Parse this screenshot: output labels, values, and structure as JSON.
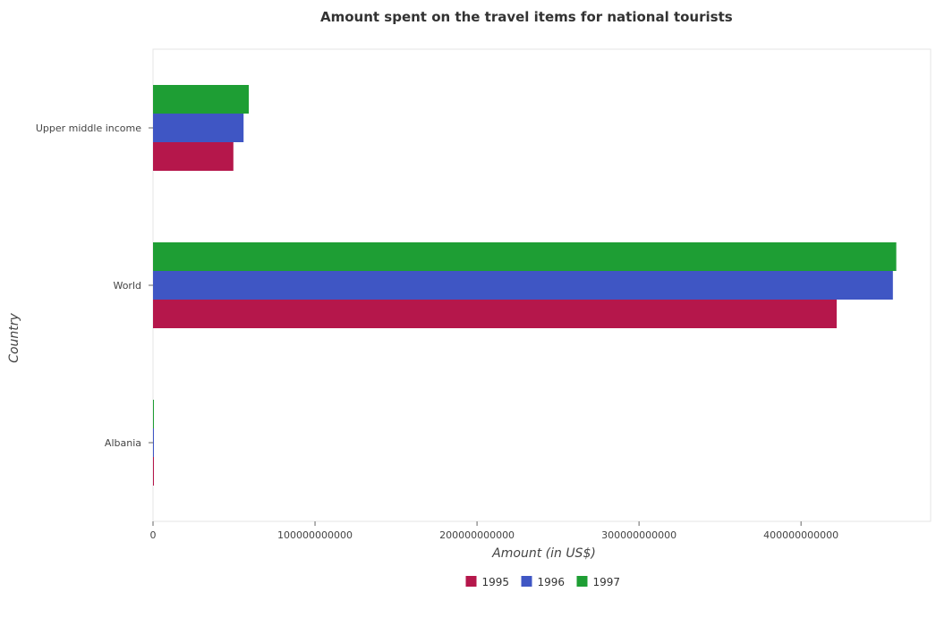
{
  "chart_data": {
    "type": "bar",
    "orientation": "horizontal",
    "title": "Amount spent on the travel items for national tourists",
    "xlabel": "Amount (in US$)",
    "ylabel": "Country",
    "categories": [
      "Upper middle income",
      "World",
      "Albania"
    ],
    "series": [
      {
        "name": "1995",
        "color": "#b5174b",
        "values": [
          49600000000,
          422000000000,
          70000000
        ]
      },
      {
        "name": "1996",
        "color": "#3f56c4",
        "values": [
          55900000000,
          456700000000,
          94000000
        ]
      },
      {
        "name": "1997",
        "color": "#1e9e34",
        "values": [
          59100000000,
          458800000000,
          27000000
        ]
      }
    ],
    "xlim": [
      0,
      480000000000
    ],
    "xticks": [
      0,
      100000000000,
      200000000000,
      300000000000,
      400000000000
    ],
    "xtick_labels": [
      "0",
      "100000000000",
      "200000000000",
      "300000000000",
      "400000000000"
    ],
    "legend_position": "bottom-center",
    "grid": false
  }
}
